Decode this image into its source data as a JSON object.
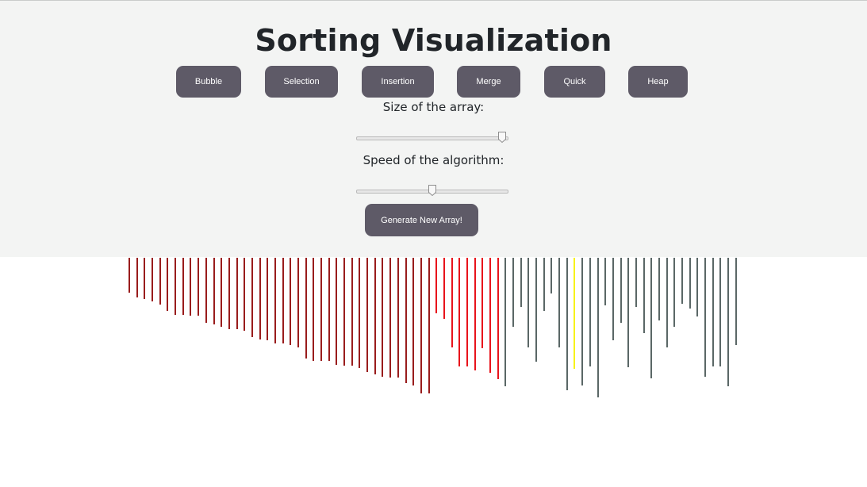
{
  "header": {
    "title": "Sorting Visualization"
  },
  "algorithms": [
    {
      "label": "Bubble"
    },
    {
      "label": "Selection"
    },
    {
      "label": "Insertion"
    },
    {
      "label": "Merge"
    },
    {
      "label": "Quick"
    },
    {
      "label": "Heap"
    }
  ],
  "size_control": {
    "label": "Size of the array:",
    "value_fraction": 0.96
  },
  "speed_control": {
    "label": "Speed of the algorithm:",
    "value_fraction": 0.5
  },
  "generate_button": {
    "label": "Generate New Array!"
  },
  "bars": [
    {
      "v": 44,
      "s": "sorted"
    },
    {
      "v": 50,
      "s": "sorted"
    },
    {
      "v": 52,
      "s": "sorted"
    },
    {
      "v": 55,
      "s": "sorted"
    },
    {
      "v": 59,
      "s": "sorted"
    },
    {
      "v": 67,
      "s": "sorted"
    },
    {
      "v": 72,
      "s": "sorted"
    },
    {
      "v": 72,
      "s": "sorted"
    },
    {
      "v": 73,
      "s": "sorted"
    },
    {
      "v": 73,
      "s": "sorted"
    },
    {
      "v": 82,
      "s": "sorted"
    },
    {
      "v": 84,
      "s": "sorted"
    },
    {
      "v": 87,
      "s": "sorted"
    },
    {
      "v": 90,
      "s": "sorted"
    },
    {
      "v": 90,
      "s": "sorted"
    },
    {
      "v": 92,
      "s": "sorted"
    },
    {
      "v": 100,
      "s": "sorted"
    },
    {
      "v": 103,
      "s": "sorted"
    },
    {
      "v": 104,
      "s": "sorted"
    },
    {
      "v": 108,
      "s": "sorted"
    },
    {
      "v": 108,
      "s": "sorted"
    },
    {
      "v": 110,
      "s": "sorted"
    },
    {
      "v": 113,
      "s": "sorted"
    },
    {
      "v": 127,
      "s": "sorted"
    },
    {
      "v": 130,
      "s": "sorted"
    },
    {
      "v": 130,
      "s": "sorted"
    },
    {
      "v": 130,
      "s": "sorted"
    },
    {
      "v": 135,
      "s": "sorted"
    },
    {
      "v": 136,
      "s": "sorted"
    },
    {
      "v": 136,
      "s": "sorted"
    },
    {
      "v": 139,
      "s": "sorted"
    },
    {
      "v": 144,
      "s": "sorted"
    },
    {
      "v": 147,
      "s": "sorted"
    },
    {
      "v": 150,
      "s": "sorted"
    },
    {
      "v": 151,
      "s": "sorted"
    },
    {
      "v": 151,
      "s": "sorted"
    },
    {
      "v": 158,
      "s": "sorted"
    },
    {
      "v": 161,
      "s": "sorted"
    },
    {
      "v": 171,
      "s": "sorted"
    },
    {
      "v": 171,
      "s": "sorted"
    },
    {
      "v": 70,
      "s": "merging"
    },
    {
      "v": 77,
      "s": "merging"
    },
    {
      "v": 113,
      "s": "merging"
    },
    {
      "v": 137,
      "s": "merging"
    },
    {
      "v": 137,
      "s": "merging"
    },
    {
      "v": 142,
      "s": "merging"
    },
    {
      "v": 114,
      "s": "merging"
    },
    {
      "v": 145,
      "s": "merging"
    },
    {
      "v": 153,
      "s": "merging"
    },
    {
      "v": 162,
      "s": "unsorted"
    },
    {
      "v": 87,
      "s": "unsorted"
    },
    {
      "v": 62,
      "s": "unsorted"
    },
    {
      "v": 113,
      "s": "unsorted"
    },
    {
      "v": 131,
      "s": "unsorted"
    },
    {
      "v": 67,
      "s": "unsorted"
    },
    {
      "v": 45,
      "s": "unsorted"
    },
    {
      "v": 113,
      "s": "unsorted"
    },
    {
      "v": 167,
      "s": "unsorted"
    },
    {
      "v": 140,
      "s": "compare"
    },
    {
      "v": 161,
      "s": "unsorted"
    },
    {
      "v": 137,
      "s": "unsorted"
    },
    {
      "v": 176,
      "s": "unsorted"
    },
    {
      "v": 60,
      "s": "unsorted"
    },
    {
      "v": 104,
      "s": "unsorted"
    },
    {
      "v": 82,
      "s": "unsorted"
    },
    {
      "v": 138,
      "s": "unsorted"
    },
    {
      "v": 62,
      "s": "unsorted"
    },
    {
      "v": 95,
      "s": "unsorted"
    },
    {
      "v": 152,
      "s": "unsorted"
    },
    {
      "v": 79,
      "s": "unsorted"
    },
    {
      "v": 113,
      "s": "unsorted"
    },
    {
      "v": 87,
      "s": "unsorted"
    },
    {
      "v": 58,
      "s": "unsorted"
    },
    {
      "v": 64,
      "s": "unsorted"
    },
    {
      "v": 74,
      "s": "unsorted"
    },
    {
      "v": 150,
      "s": "unsorted"
    },
    {
      "v": 137,
      "s": "unsorted"
    },
    {
      "v": 137,
      "s": "unsorted"
    },
    {
      "v": 162,
      "s": "unsorted"
    },
    {
      "v": 110,
      "s": "unsorted"
    }
  ],
  "colors": {
    "sorted": "#991c1c",
    "merging": "#e8131b",
    "unsorted": "#5a6766",
    "compare": "#f7f21a",
    "button_bg": "#5e5a67",
    "panel_bg": "#f3f4f3"
  }
}
